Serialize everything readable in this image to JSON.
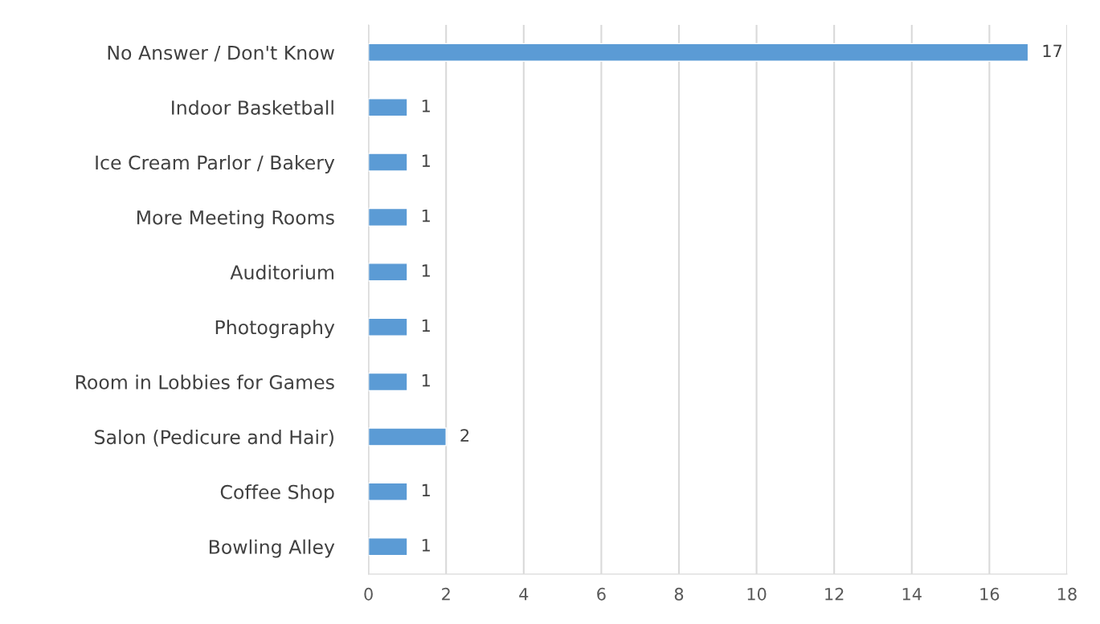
{
  "chart_data": {
    "type": "bar",
    "orientation": "horizontal",
    "categories": [
      "No Answer / Don't Know",
      "Indoor Basketball",
      "Ice Cream Parlor / Bakery",
      "More Meeting Rooms",
      "Auditorium",
      "Photography",
      "Room in Lobbies for Games",
      "Salon (Pedicure and Hair)",
      "Coffee Shop",
      "Bowling Alley"
    ],
    "values": [
      17,
      1,
      1,
      1,
      1,
      1,
      1,
      2,
      1,
      1
    ],
    "color": "#5b9bd5",
    "xlim": [
      0,
      18
    ],
    "xticks": [
      0,
      2,
      4,
      6,
      8,
      10,
      12,
      14,
      16,
      18
    ],
    "grid": "x",
    "data_labels": true
  }
}
